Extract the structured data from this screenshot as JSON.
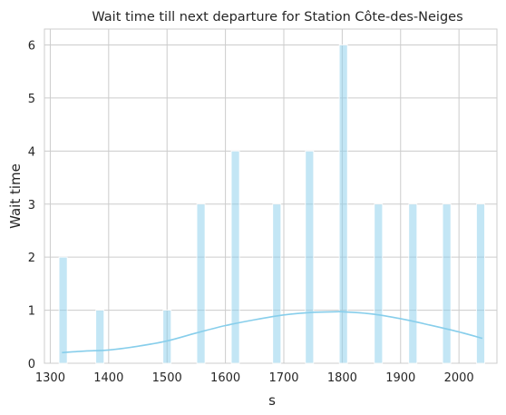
{
  "chart_data": {
    "type": "bar",
    "title": "Wait time till next departure for Station Côte-des-Neiges",
    "xlabel": "s",
    "ylabel": "Wait time",
    "xlim": [
      1290,
      2065
    ],
    "ylim": [
      0,
      6.3
    ],
    "x_ticks": [
      1300,
      1400,
      1500,
      1600,
      1700,
      1800,
      1900,
      2000
    ],
    "y_ticks": [
      0,
      1,
      2,
      3,
      4,
      5,
      6
    ],
    "grid": true,
    "bar_width": 14,
    "bar_color": "#87ceeb",
    "bar_opacity": 0.5,
    "bars": [
      {
        "x": 1322,
        "value": 2
      },
      {
        "x": 1385,
        "value": 1
      },
      {
        "x": 1500,
        "value": 1
      },
      {
        "x": 1558,
        "value": 3
      },
      {
        "x": 1617,
        "value": 4
      },
      {
        "x": 1688,
        "value": 3
      },
      {
        "x": 1744,
        "value": 4
      },
      {
        "x": 1802,
        "value": 6
      },
      {
        "x": 1862,
        "value": 3
      },
      {
        "x": 1921,
        "value": 3
      },
      {
        "x": 1979,
        "value": 3
      },
      {
        "x": 2037,
        "value": 3
      }
    ],
    "kde_curve": {
      "color": "#87ceeb",
      "points": [
        [
          1320,
          0.2
        ],
        [
          1360,
          0.23
        ],
        [
          1400,
          0.25
        ],
        [
          1450,
          0.32
        ],
        [
          1500,
          0.42
        ],
        [
          1550,
          0.57
        ],
        [
          1600,
          0.71
        ],
        [
          1650,
          0.82
        ],
        [
          1700,
          0.91
        ],
        [
          1750,
          0.96
        ],
        [
          1790,
          0.97
        ],
        [
          1800,
          0.97
        ],
        [
          1850,
          0.93
        ],
        [
          1900,
          0.84
        ],
        [
          1950,
          0.72
        ],
        [
          2000,
          0.59
        ],
        [
          2040,
          0.47
        ]
      ]
    }
  }
}
